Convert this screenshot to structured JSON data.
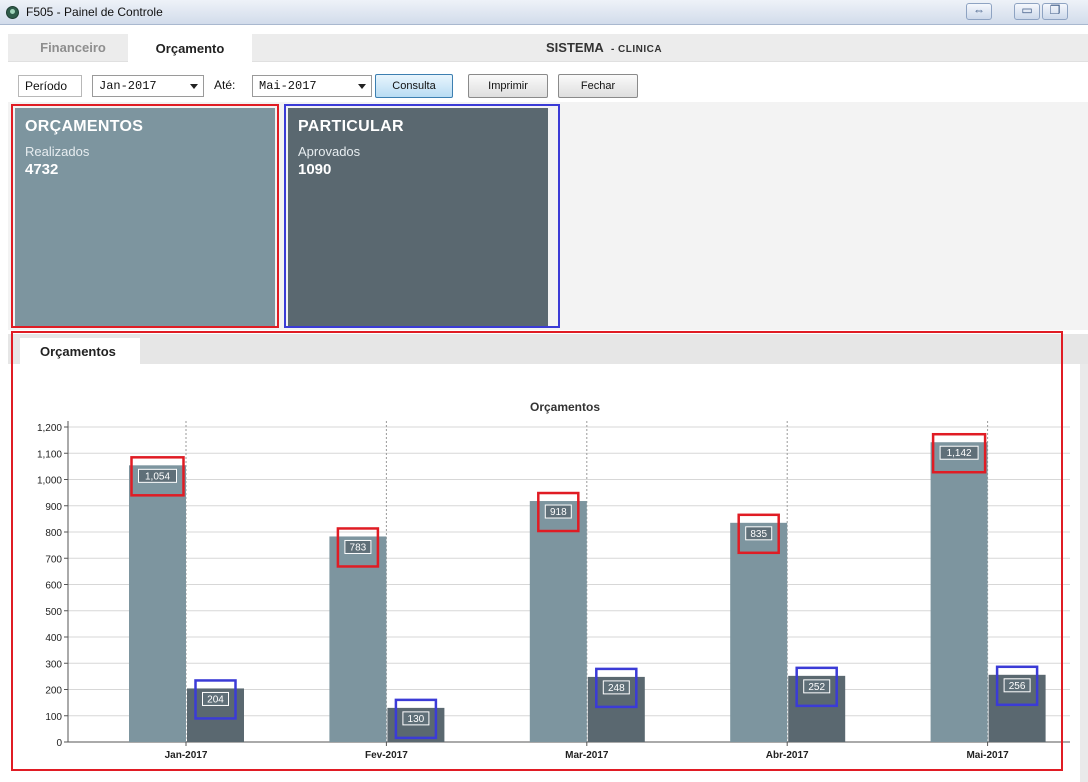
{
  "window": {
    "title": "F505 - Painel de Controle"
  },
  "tabs": [
    {
      "label": "Financeiro",
      "active": false
    },
    {
      "label": "Orçamento",
      "active": true
    }
  ],
  "header": {
    "system_label": "SISTEMA",
    "system_name": "- CLINICA"
  },
  "toolbar": {
    "periodo_label": "Período",
    "from_value": "Jan-2017",
    "ate_label": "Até:",
    "to_value": "Mai-2017",
    "consulta_label": "Consulta",
    "imprimir_label": "Imprimir",
    "fechar_label": "Fechar"
  },
  "cards": [
    {
      "title": "ORÇAMENTOS",
      "subtitle": "Realizados",
      "value": "4732",
      "color": "#7d959f"
    },
    {
      "title": "PARTICULAR",
      "subtitle": "Aprovados",
      "value": "1090",
      "color": "#5a6870"
    }
  ],
  "panel": {
    "tab_label": "Orçamentos"
  },
  "chart_data": {
    "type": "bar",
    "title": "Orçamentos",
    "categories": [
      "Jan-2017",
      "Fev-2017",
      "Mar-2017",
      "Abr-2017",
      "Mai-2017"
    ],
    "series": [
      {
        "values": [
          1054,
          783,
          918,
          835,
          1142
        ],
        "labels": [
          "1,054",
          "783",
          "918",
          "835",
          "1,142"
        ],
        "color": "#7d959f"
      },
      {
        "values": [
          204,
          130,
          248,
          252,
          256
        ],
        "labels": [
          "204",
          "130",
          "248",
          "252",
          "256"
        ],
        "color": "#5a6870"
      }
    ],
    "ylim": [
      0,
      1200
    ],
    "yticks": [
      0,
      100,
      200,
      300,
      400,
      500,
      600,
      700,
      800,
      900,
      1000,
      1100,
      1200
    ],
    "ytick_labels": [
      "0",
      "100",
      "200",
      "300",
      "400",
      "500",
      "600",
      "700",
      "800",
      "900",
      "1,000",
      "1,100",
      "1,200"
    ],
    "grid": true,
    "highlight_colors": {
      "series_1": "#e01c24",
      "series_2": "#3b3bd6"
    }
  }
}
